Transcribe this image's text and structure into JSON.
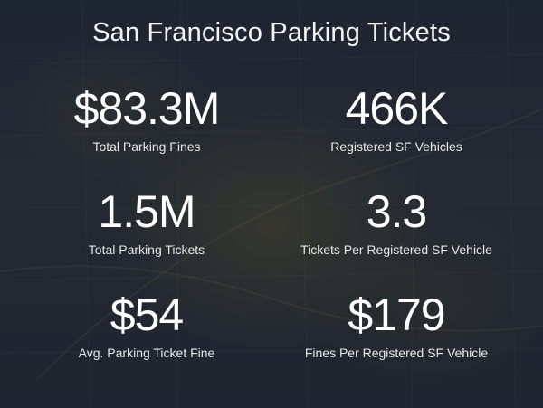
{
  "title": "San Francisco Parking Tickets",
  "colors": {
    "background": "#1b2230",
    "text": "#ffffff"
  },
  "stats": [
    {
      "value": "$83.3M",
      "label": "Total Parking Fines"
    },
    {
      "value": "466K",
      "label": "Registered SF Vehicles"
    },
    {
      "value": "1.5M",
      "label": "Total Parking Tickets"
    },
    {
      "value": "3.3",
      "label": "Tickets Per Registered SF Vehicle"
    },
    {
      "value": "$54",
      "label": "Avg. Parking Ticket Fine"
    },
    {
      "value": "$179",
      "label": "Fines Per Registered SF Vehicle"
    }
  ]
}
